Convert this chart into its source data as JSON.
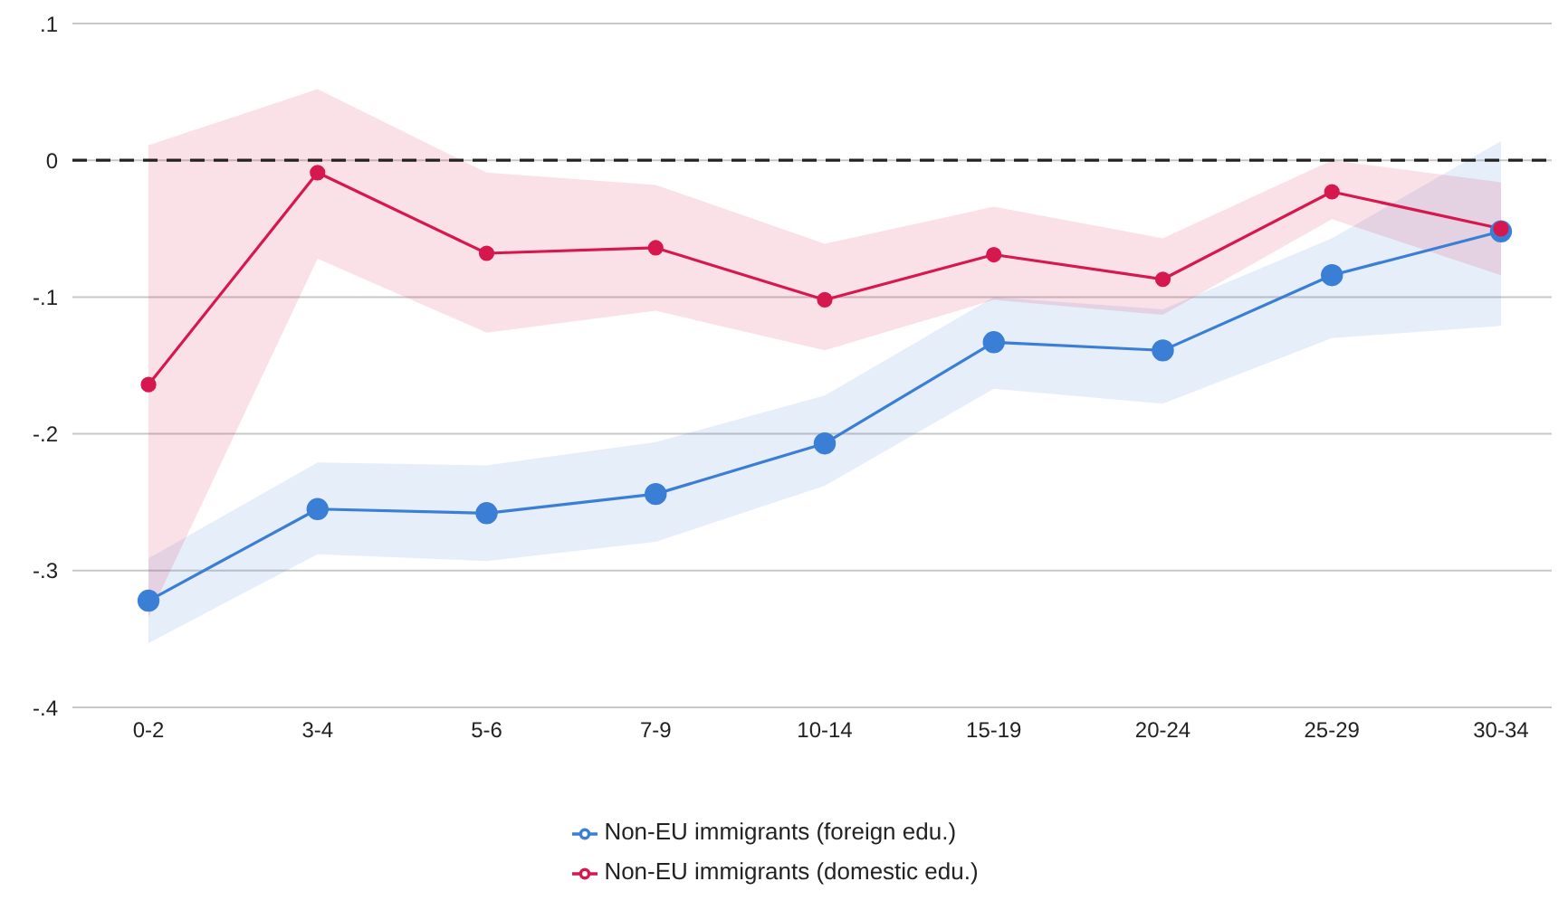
{
  "chart_data": {
    "type": "line",
    "categories": [
      "0-2",
      "3-4",
      "5-6",
      "7-9",
      "10-14",
      "15-19",
      "20-24",
      "25-29",
      "30-34"
    ],
    "series": [
      {
        "name": "Non-EU immigrants (foreign edu.)",
        "color": "#3a7fd5",
        "values": [
          -0.322,
          -0.255,
          -0.258,
          -0.244,
          -0.207,
          -0.133,
          -0.139,
          -0.084,
          -0.052
        ],
        "lower": [
          -0.353,
          -0.288,
          -0.293,
          -0.279,
          -0.238,
          -0.167,
          -0.178,
          -0.13,
          -0.121
        ],
        "upper": [
          -0.291,
          -0.221,
          -0.223,
          -0.206,
          -0.172,
          -0.1,
          -0.109,
          -0.057,
          0.014
        ]
      },
      {
        "name": "Non-EU immigrants (domestic edu.)",
        "color": "#d6184f",
        "values": [
          -0.164,
          -0.009,
          -0.068,
          -0.064,
          -0.102,
          -0.069,
          -0.087,
          -0.023,
          -0.05
        ],
        "lower": [
          -0.334,
          -0.072,
          -0.126,
          -0.11,
          -0.139,
          -0.102,
          -0.113,
          -0.043,
          -0.084
        ],
        "upper": [
          0.011,
          0.052,
          -0.009,
          -0.018,
          -0.061,
          -0.034,
          -0.057,
          0,
          -0.016
        ]
      }
    ],
    "ylim": [
      -0.4,
      0.1
    ],
    "yticks": [
      {
        "value": -0.4,
        "label": "-.4"
      },
      {
        "value": -0.3,
        "label": "-.3"
      },
      {
        "value": -0.2,
        "label": "-.2"
      },
      {
        "value": -0.1,
        "label": "-.1"
      },
      {
        "value": 0,
        "label": "0"
      },
      {
        "value": 0.1,
        "label": ".1"
      }
    ],
    "ref_lines": [
      {
        "axis": "y",
        "value": 0,
        "color": "#222222",
        "line_style": "dashed"
      }
    ],
    "grid": "y",
    "legend": "bottom",
    "marker": "circle",
    "line_style": "solid"
  }
}
